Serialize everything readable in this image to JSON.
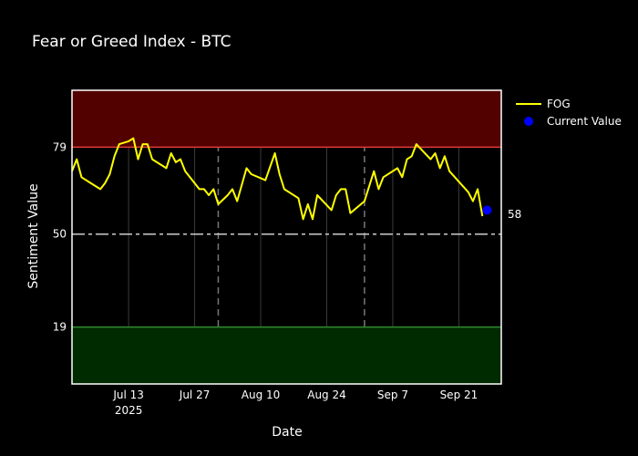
{
  "chart_data": {
    "type": "line",
    "title": "Fear or Greed Index - BTC",
    "xlabel": "Date",
    "ylabel": "Sentiment Value",
    "x_range": [
      "2025-07-01",
      "2025-09-30"
    ],
    "ylim": [
      0,
      98
    ],
    "y_ticks": [
      19,
      50,
      79
    ],
    "x_ticks": [
      {
        "date": "2025-07-13",
        "label": "Jul 13",
        "sublabel": "2025"
      },
      {
        "date": "2025-07-27",
        "label": "Jul 27",
        "sublabel": ""
      },
      {
        "date": "2025-08-10",
        "label": "Aug 10",
        "sublabel": ""
      },
      {
        "date": "2025-08-24",
        "label": "Aug 24",
        "sublabel": ""
      },
      {
        "date": "2025-09-07",
        "label": "Sep 7",
        "sublabel": ""
      },
      {
        "date": "2025-09-21",
        "label": "Sep 21",
        "sublabel": ""
      }
    ],
    "zones": [
      {
        "from": 79,
        "to": 98,
        "fill": "#520000",
        "line": "#e03a3a"
      },
      {
        "from": 0,
        "to": 19,
        "fill": "#002a00",
        "line": "#2e8b2e"
      }
    ],
    "midline": {
      "value": 50,
      "color": "#cccccc"
    },
    "vertical_markers": [
      "2025-08-01",
      "2025-09-01"
    ],
    "series": [
      {
        "name": "FOG",
        "color": "#ffff00",
        "points": [
          [
            "2025-07-01",
            71
          ],
          [
            "2025-07-02",
            75
          ],
          [
            "2025-07-03",
            69
          ],
          [
            "2025-07-05",
            67
          ],
          [
            "2025-07-07",
            65
          ],
          [
            "2025-07-08",
            67
          ],
          [
            "2025-07-09",
            70
          ],
          [
            "2025-07-10",
            76
          ],
          [
            "2025-07-11",
            80
          ],
          [
            "2025-07-13",
            81
          ],
          [
            "2025-07-14",
            82
          ],
          [
            "2025-07-15",
            75
          ],
          [
            "2025-07-16",
            80
          ],
          [
            "2025-07-17",
            80
          ],
          [
            "2025-07-18",
            75
          ],
          [
            "2025-07-20",
            73
          ],
          [
            "2025-07-21",
            72
          ],
          [
            "2025-07-22",
            77
          ],
          [
            "2025-07-23",
            74
          ],
          [
            "2025-07-24",
            75
          ],
          [
            "2025-07-25",
            71
          ],
          [
            "2025-07-27",
            67
          ],
          [
            "2025-07-28",
            65
          ],
          [
            "2025-07-29",
            65
          ],
          [
            "2025-07-30",
            63
          ],
          [
            "2025-07-31",
            65
          ],
          [
            "2025-08-01",
            60
          ],
          [
            "2025-08-03",
            63
          ],
          [
            "2025-08-04",
            65
          ],
          [
            "2025-08-05",
            61
          ],
          [
            "2025-08-07",
            72
          ],
          [
            "2025-08-08",
            70
          ],
          [
            "2025-08-11",
            68
          ],
          [
            "2025-08-13",
            77
          ],
          [
            "2025-08-14",
            70
          ],
          [
            "2025-08-15",
            65
          ],
          [
            "2025-08-18",
            62
          ],
          [
            "2025-08-19",
            55
          ],
          [
            "2025-08-20",
            60
          ],
          [
            "2025-08-21",
            55
          ],
          [
            "2025-08-22",
            63
          ],
          [
            "2025-08-25",
            58
          ],
          [
            "2025-08-26",
            63
          ],
          [
            "2025-08-27",
            65
          ],
          [
            "2025-08-28",
            65
          ],
          [
            "2025-08-29",
            57
          ],
          [
            "2025-09-01",
            61
          ],
          [
            "2025-09-03",
            71
          ],
          [
            "2025-09-04",
            65
          ],
          [
            "2025-09-05",
            69
          ],
          [
            "2025-09-08",
            72
          ],
          [
            "2025-09-09",
            69
          ],
          [
            "2025-09-10",
            75
          ],
          [
            "2025-09-11",
            76
          ],
          [
            "2025-09-12",
            80
          ],
          [
            "2025-09-15",
            75
          ],
          [
            "2025-09-16",
            77
          ],
          [
            "2025-09-17",
            72
          ],
          [
            "2025-09-18",
            76
          ],
          [
            "2025-09-19",
            71
          ],
          [
            "2025-09-23",
            64
          ],
          [
            "2025-09-24",
            61
          ],
          [
            "2025-09-25",
            65
          ],
          [
            "2025-09-26",
            56
          ]
        ]
      },
      {
        "name": "Current Value",
        "color": "#0000ff",
        "points": [
          [
            "2025-09-27",
            58
          ]
        ]
      }
    ],
    "annotations": [
      {
        "text": "58"
      }
    ],
    "legend_position": "top-right",
    "grid": true
  }
}
